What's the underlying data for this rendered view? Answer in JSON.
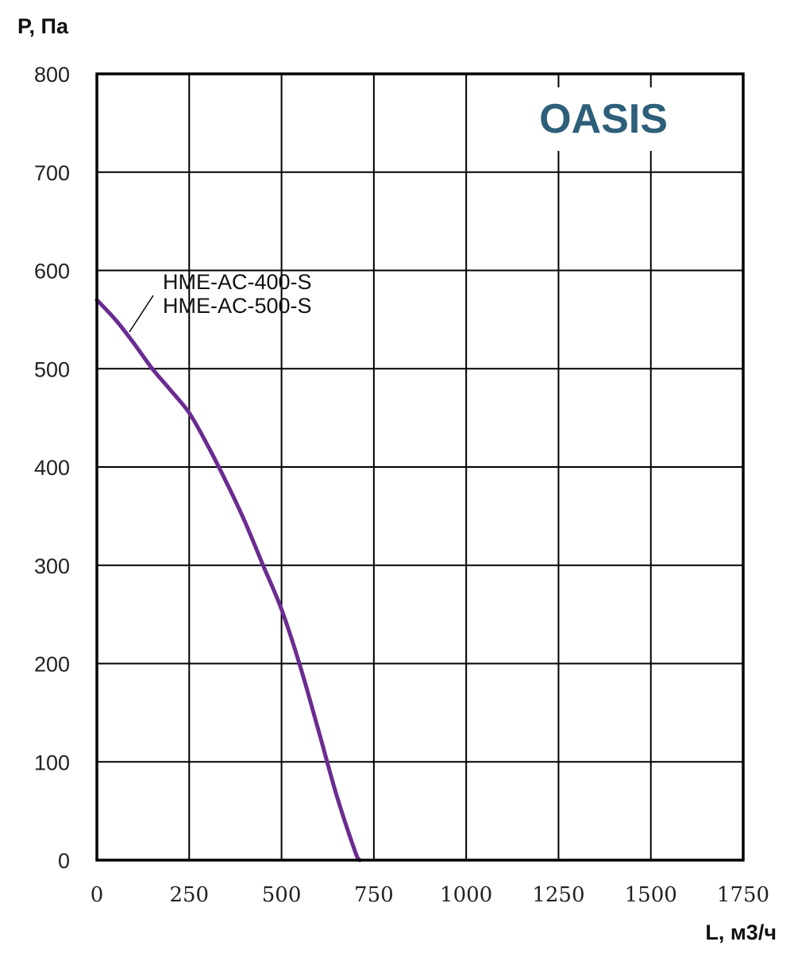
{
  "chart_data": {
    "type": "line",
    "title": "",
    "xlabel": "L, м3/ч",
    "ylabel": "P, Па",
    "xlim": [
      0,
      1750
    ],
    "ylim": [
      0,
      800
    ],
    "xticks": [
      "0",
      "250",
      "500",
      "750",
      "1000",
      "1250",
      "1500",
      "1750"
    ],
    "yticks": [
      "0",
      "100",
      "200",
      "300",
      "400",
      "500",
      "600",
      "700",
      "800"
    ],
    "grid": true,
    "series": [
      {
        "name": "HME-AC-400-S",
        "name2": "HME-AC-500-S",
        "color": "#6a2c91",
        "x": [
          0,
          50,
          100,
          150,
          200,
          250,
          300,
          350,
          400,
          450,
          500,
          550,
          600,
          650,
          700,
          712
        ],
        "y": [
          570,
          550,
          526,
          500,
          478,
          455,
          422,
          385,
          345,
          300,
          255,
          198,
          132,
          65,
          8,
          0
        ]
      }
    ],
    "annotations": [
      {
        "text": "OASIS",
        "color": "#2d5f7a",
        "position": "top-right"
      }
    ]
  }
}
